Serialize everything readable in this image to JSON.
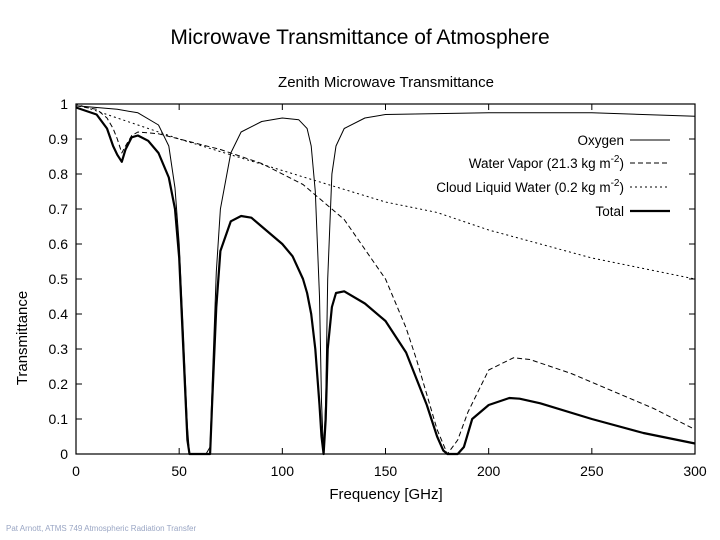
{
  "slide": {
    "title": "Microwave Transmittance of Atmosphere",
    "footer": "Pat Arnott, ATMS 749 Atmospheric Radiation Transfer"
  },
  "chart_data": {
    "type": "line",
    "title": "Zenith Microwave Transmittance",
    "xlabel": "Frequency [GHz]",
    "ylabel": "Transmittance",
    "xlim": [
      0,
      300
    ],
    "ylim": [
      0,
      1
    ],
    "xticks": [
      0,
      50,
      100,
      150,
      200,
      250,
      300
    ],
    "yticks": [
      0,
      0.1,
      0.2,
      0.3,
      0.4,
      0.5,
      0.6,
      0.7,
      0.8,
      0.9,
      1
    ],
    "grid": false,
    "legend_position": "top-right",
    "series": [
      {
        "name": "Oxygen",
        "style": "solid-thin",
        "x": [
          0,
          10,
          20,
          30,
          40,
          45,
          48,
          50,
          52,
          54,
          55,
          57,
          60,
          63,
          65,
          66,
          68,
          70,
          75,
          80,
          90,
          100,
          108,
          112,
          114,
          116,
          118,
          119,
          120,
          121,
          122,
          124,
          126,
          130,
          140,
          150,
          200,
          250,
          300
        ],
        "y": [
          0.995,
          0.99,
          0.985,
          0.975,
          0.94,
          0.88,
          0.76,
          0.6,
          0.35,
          0.08,
          0,
          0,
          0,
          0,
          0.02,
          0.2,
          0.52,
          0.7,
          0.86,
          0.92,
          0.95,
          0.96,
          0.955,
          0.93,
          0.88,
          0.75,
          0.45,
          0.15,
          0,
          0.15,
          0.5,
          0.8,
          0.88,
          0.93,
          0.96,
          0.97,
          0.975,
          0.975,
          0.965
        ]
      },
      {
        "name": "Water Vapor (21.3 kg m-2)",
        "style": "dashed",
        "x": [
          0,
          10,
          15,
          18,
          20,
          22.2,
          24,
          27,
          30,
          40,
          50,
          70,
          90,
          110,
          130,
          150,
          160,
          165,
          170,
          175,
          180,
          185,
          190,
          200,
          212,
          220,
          240,
          260,
          280,
          300
        ],
        "y": [
          0.995,
          0.985,
          0.96,
          0.93,
          0.9,
          0.86,
          0.88,
          0.91,
          0.92,
          0.915,
          0.9,
          0.87,
          0.83,
          0.77,
          0.67,
          0.5,
          0.36,
          0.27,
          0.17,
          0.07,
          0,
          0.04,
          0.12,
          0.24,
          0.275,
          0.27,
          0.23,
          0.18,
          0.13,
          0.07
        ]
      },
      {
        "name": "Cloud Liquid Water (0.2 kg m-2)",
        "style": "dotted",
        "x": [
          0,
          25,
          50,
          75,
          100,
          125,
          150,
          175,
          200,
          225,
          250,
          275,
          300
        ],
        "y": [
          1,
          0.95,
          0.9,
          0.855,
          0.81,
          0.765,
          0.72,
          0.69,
          0.64,
          0.6,
          0.56,
          0.53,
          0.5
        ]
      },
      {
        "name": "Total",
        "style": "solid-thick",
        "x": [
          0,
          10,
          15,
          18,
          20,
          22.2,
          24,
          27,
          30,
          35,
          40,
          45,
          48,
          50,
          52,
          54,
          55,
          65,
          66,
          68,
          70,
          75,
          80,
          85,
          90,
          100,
          105,
          110,
          112,
          114,
          116,
          118,
          119,
          120,
          121,
          122,
          124,
          126,
          130,
          140,
          150,
          160,
          170,
          175,
          178,
          180,
          185,
          188,
          192,
          200,
          210,
          215,
          225,
          250,
          275,
          300
        ],
        "y": [
          0.99,
          0.97,
          0.93,
          0.88,
          0.855,
          0.835,
          0.87,
          0.905,
          0.91,
          0.895,
          0.86,
          0.79,
          0.7,
          0.56,
          0.3,
          0.04,
          0,
          0,
          0.15,
          0.42,
          0.58,
          0.665,
          0.68,
          0.675,
          0.65,
          0.6,
          0.565,
          0.5,
          0.46,
          0.4,
          0.3,
          0.14,
          0.05,
          0,
          0.1,
          0.3,
          0.42,
          0.46,
          0.465,
          0.43,
          0.38,
          0.29,
          0.14,
          0.05,
          0.01,
          0,
          0,
          0.02,
          0.1,
          0.14,
          0.16,
          0.158,
          0.145,
          0.1,
          0.06,
          0.03
        ]
      }
    ]
  }
}
